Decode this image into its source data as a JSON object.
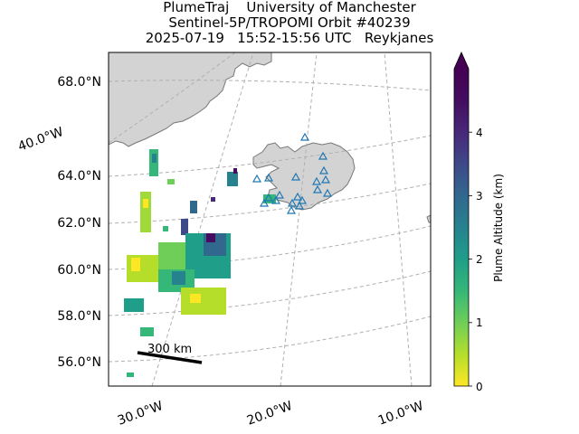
{
  "title": {
    "line1": "PlumeTraj    University of Manchester",
    "line2": "Sentinel-5P/TROPOMI Orbit #40239",
    "line3": "2025-07-19   15:52-15:56 UTC   Reykjanes"
  },
  "map": {
    "lat_labels": [
      "68.0°N",
      "64.0°N",
      "62.0°N",
      "60.0°N",
      "58.0°N",
      "56.0°N"
    ],
    "lon_labels_bottom": [
      "30.0°W",
      "20.0°W",
      "10.0°W"
    ],
    "lon_label_left": "40.0°W",
    "scale_bar_label": "300 km",
    "colors": {
      "land": "#d3d3d3",
      "coast": "#777777",
      "grid": "#b0b0b0",
      "volcano_marker": "#1f77b4"
    }
  },
  "colorbar": {
    "label": "Plume Altitude (km)",
    "ticks": [
      "0",
      "1",
      "2",
      "3",
      "4"
    ],
    "range": [
      0,
      5
    ],
    "colormap": "viridis_r",
    "extend": "max"
  }
}
